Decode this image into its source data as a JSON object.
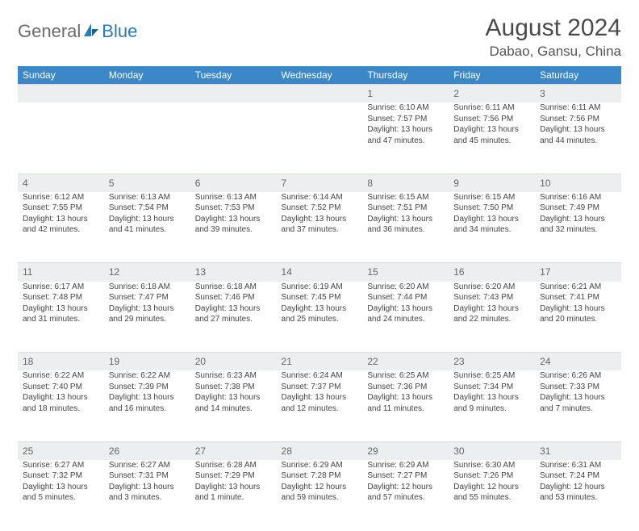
{
  "logo": {
    "part1": "General",
    "part2": "Blue"
  },
  "title": "August 2024",
  "location": "Dabao, Gansu, China",
  "colors": {
    "header_bg": "#3b87c8",
    "header_text": "#ffffff",
    "daynum_bg": "#eceef0",
    "body_text": "#444444",
    "logo_gray": "#6b6b6b",
    "logo_blue": "#2a7ab9"
  },
  "dayHeaders": [
    "Sunday",
    "Monday",
    "Tuesday",
    "Wednesday",
    "Thursday",
    "Friday",
    "Saturday"
  ],
  "weeks": [
    {
      "nums": [
        "",
        "",
        "",
        "",
        "1",
        "2",
        "3"
      ],
      "cells": [
        null,
        null,
        null,
        null,
        {
          "sunrise": "6:10 AM",
          "sunset": "7:57 PM",
          "daylight": "13 hours and 47 minutes."
        },
        {
          "sunrise": "6:11 AM",
          "sunset": "7:56 PM",
          "daylight": "13 hours and 45 minutes."
        },
        {
          "sunrise": "6:11 AM",
          "sunset": "7:56 PM",
          "daylight": "13 hours and 44 minutes."
        }
      ]
    },
    {
      "nums": [
        "4",
        "5",
        "6",
        "7",
        "8",
        "9",
        "10"
      ],
      "cells": [
        {
          "sunrise": "6:12 AM",
          "sunset": "7:55 PM",
          "daylight": "13 hours and 42 minutes."
        },
        {
          "sunrise": "6:13 AM",
          "sunset": "7:54 PM",
          "daylight": "13 hours and 41 minutes."
        },
        {
          "sunrise": "6:13 AM",
          "sunset": "7:53 PM",
          "daylight": "13 hours and 39 minutes."
        },
        {
          "sunrise": "6:14 AM",
          "sunset": "7:52 PM",
          "daylight": "13 hours and 37 minutes."
        },
        {
          "sunrise": "6:15 AM",
          "sunset": "7:51 PM",
          "daylight": "13 hours and 36 minutes."
        },
        {
          "sunrise": "6:15 AM",
          "sunset": "7:50 PM",
          "daylight": "13 hours and 34 minutes."
        },
        {
          "sunrise": "6:16 AM",
          "sunset": "7:49 PM",
          "daylight": "13 hours and 32 minutes."
        }
      ]
    },
    {
      "nums": [
        "11",
        "12",
        "13",
        "14",
        "15",
        "16",
        "17"
      ],
      "cells": [
        {
          "sunrise": "6:17 AM",
          "sunset": "7:48 PM",
          "daylight": "13 hours and 31 minutes."
        },
        {
          "sunrise": "6:18 AM",
          "sunset": "7:47 PM",
          "daylight": "13 hours and 29 minutes."
        },
        {
          "sunrise": "6:18 AM",
          "sunset": "7:46 PM",
          "daylight": "13 hours and 27 minutes."
        },
        {
          "sunrise": "6:19 AM",
          "sunset": "7:45 PM",
          "daylight": "13 hours and 25 minutes."
        },
        {
          "sunrise": "6:20 AM",
          "sunset": "7:44 PM",
          "daylight": "13 hours and 24 minutes."
        },
        {
          "sunrise": "6:20 AM",
          "sunset": "7:43 PM",
          "daylight": "13 hours and 22 minutes."
        },
        {
          "sunrise": "6:21 AM",
          "sunset": "7:41 PM",
          "daylight": "13 hours and 20 minutes."
        }
      ]
    },
    {
      "nums": [
        "18",
        "19",
        "20",
        "21",
        "22",
        "23",
        "24"
      ],
      "cells": [
        {
          "sunrise": "6:22 AM",
          "sunset": "7:40 PM",
          "daylight": "13 hours and 18 minutes."
        },
        {
          "sunrise": "6:22 AM",
          "sunset": "7:39 PM",
          "daylight": "13 hours and 16 minutes."
        },
        {
          "sunrise": "6:23 AM",
          "sunset": "7:38 PM",
          "daylight": "13 hours and 14 minutes."
        },
        {
          "sunrise": "6:24 AM",
          "sunset": "7:37 PM",
          "daylight": "13 hours and 12 minutes."
        },
        {
          "sunrise": "6:25 AM",
          "sunset": "7:36 PM",
          "daylight": "13 hours and 11 minutes."
        },
        {
          "sunrise": "6:25 AM",
          "sunset": "7:34 PM",
          "daylight": "13 hours and 9 minutes."
        },
        {
          "sunrise": "6:26 AM",
          "sunset": "7:33 PM",
          "daylight": "13 hours and 7 minutes."
        }
      ]
    },
    {
      "nums": [
        "25",
        "26",
        "27",
        "28",
        "29",
        "30",
        "31"
      ],
      "cells": [
        {
          "sunrise": "6:27 AM",
          "sunset": "7:32 PM",
          "daylight": "13 hours and 5 minutes."
        },
        {
          "sunrise": "6:27 AM",
          "sunset": "7:31 PM",
          "daylight": "13 hours and 3 minutes."
        },
        {
          "sunrise": "6:28 AM",
          "sunset": "7:29 PM",
          "daylight": "13 hours and 1 minute."
        },
        {
          "sunrise": "6:29 AM",
          "sunset": "7:28 PM",
          "daylight": "12 hours and 59 minutes."
        },
        {
          "sunrise": "6:29 AM",
          "sunset": "7:27 PM",
          "daylight": "12 hours and 57 minutes."
        },
        {
          "sunrise": "6:30 AM",
          "sunset": "7:26 PM",
          "daylight": "12 hours and 55 minutes."
        },
        {
          "sunrise": "6:31 AM",
          "sunset": "7:24 PM",
          "daylight": "12 hours and 53 minutes."
        }
      ]
    }
  ],
  "labels": {
    "sunrise": "Sunrise:",
    "sunset": "Sunset:",
    "daylight": "Daylight:"
  }
}
